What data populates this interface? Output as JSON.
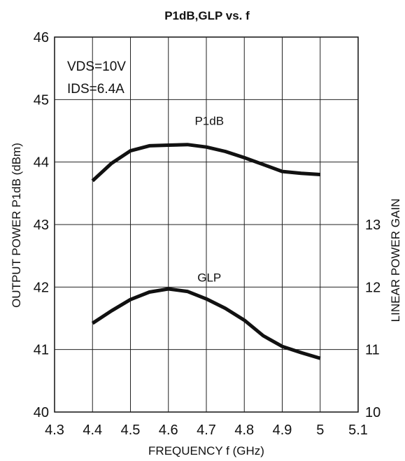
{
  "chart_data": {
    "type": "line",
    "title": "P1dB,GLP vs. f",
    "xlabel": "FREQUENCY f (GHz)",
    "ylabel": "OUTPUT POWER P1dB (dBm)",
    "y2label": "LINEAR POWER GAIN",
    "xlim": [
      4.3,
      5.1
    ],
    "ylim": [
      40,
      46
    ],
    "y2lim": [
      10,
      16
    ],
    "x_ticks": [
      "4.3",
      "4.4",
      "4.5",
      "4.6",
      "4.7",
      "4.8",
      "4.9",
      "5",
      "5.1"
    ],
    "y_ticks": [
      "40",
      "41",
      "42",
      "43",
      "44",
      "45",
      "46"
    ],
    "y2_ticks": [
      "10",
      "11",
      "12",
      "13"
    ],
    "grid": true,
    "annotations": [
      "VDS=10V",
      "IDS=6.4A"
    ],
    "series": [
      {
        "name": "P1dB",
        "axis": "left",
        "x": [
          4.4,
          4.45,
          4.5,
          4.55,
          4.6,
          4.65,
          4.7,
          4.75,
          4.8,
          4.85,
          4.9,
          4.95,
          5.0
        ],
        "y": [
          43.7,
          43.98,
          44.18,
          44.26,
          44.27,
          44.28,
          44.24,
          44.17,
          44.07,
          43.96,
          43.85,
          43.82,
          43.8
        ]
      },
      {
        "name": "GLP",
        "axis": "right",
        "x": [
          4.4,
          4.45,
          4.5,
          4.55,
          4.6,
          4.65,
          4.7,
          4.75,
          4.8,
          4.85,
          4.9,
          4.95,
          5.0
        ],
        "y": [
          11.42,
          11.62,
          11.8,
          11.92,
          11.97,
          11.93,
          11.81,
          11.66,
          11.47,
          11.22,
          11.05,
          10.95,
          10.86
        ]
      }
    ]
  }
}
